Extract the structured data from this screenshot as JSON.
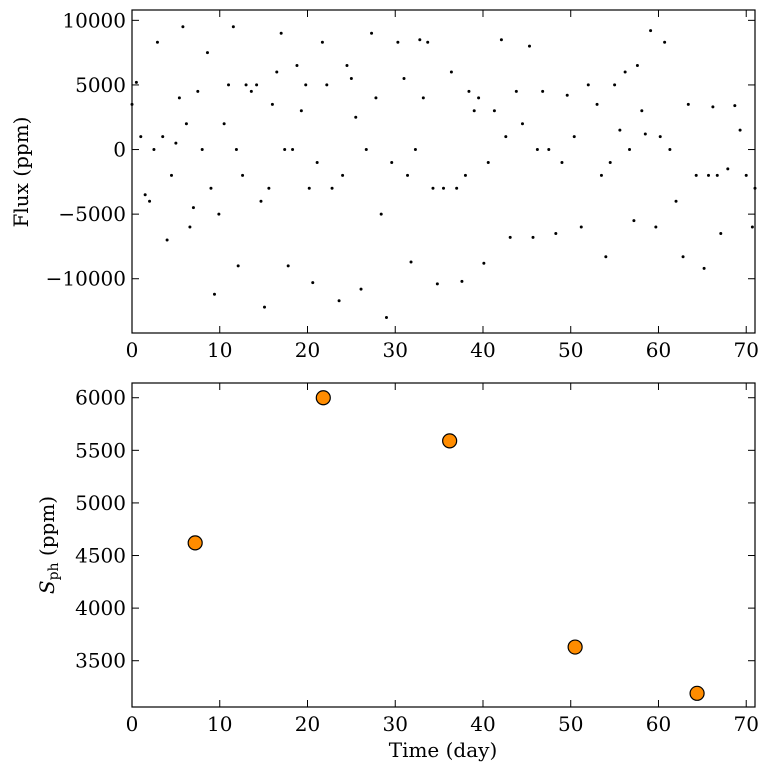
{
  "chart_data": [
    {
      "type": "scatter",
      "ylabel": "Flux (ppm)",
      "color": "#000000",
      "xlim": [
        0,
        71
      ],
      "ylim": [
        -14200,
        10800
      ],
      "xticks": [
        0,
        10,
        20,
        30,
        40,
        50,
        60,
        70
      ],
      "yticks": [
        {
          "value": -10000,
          "label": "−10000"
        },
        {
          "value": -5000,
          "label": "−5000"
        },
        0,
        5000,
        10000
      ],
      "x": [
        0,
        0.5,
        1,
        1.5,
        2,
        2.5,
        2.9,
        3.5,
        4,
        4.5,
        5,
        5.4,
        5.8,
        6.2,
        6.6,
        7,
        7.5,
        8,
        8.6,
        9,
        9.4,
        9.9,
        10.5,
        11,
        11.55,
        11.9,
        12.1,
        12.6,
        13,
        13.6,
        14.2,
        14.7,
        15.1,
        15.6,
        16,
        16.5,
        17,
        17.4,
        17.8,
        18.3,
        18.8,
        19.3,
        19.8,
        20.2,
        20.6,
        21.1,
        21.7,
        22.2,
        22.8,
        23.6,
        24,
        24.5,
        25,
        25.5,
        26.1,
        26.7,
        27.3,
        27.8,
        28.4,
        29,
        29.6,
        30.3,
        31,
        31.4,
        31.8,
        32.3,
        32.8,
        33.2,
        33.7,
        34.3,
        34.8,
        35.5,
        36.4,
        37,
        37.6,
        38,
        38.4,
        39,
        39.5,
        40.1,
        40.6,
        41.3,
        42.1,
        42.6,
        43.1,
        43.8,
        44.5,
        45.3,
        45.7,
        46.2,
        46.8,
        47.5,
        48.3,
        49,
        49.6,
        50.4,
        51.2,
        52,
        53,
        53.5,
        54,
        54.5,
        55,
        55.6,
        56.2,
        56.7,
        57.2,
        57.6,
        58.1,
        58.5,
        59.1,
        59.7,
        60.2,
        60.7,
        61.3,
        62,
        62.8,
        63.4,
        64.3,
        65.2,
        65.7,
        66.2,
        66.7,
        67.1,
        67.9,
        68.7,
        69.3,
        70,
        70.7,
        71
      ],
      "values": [
        3500,
        5200,
        1000,
        -3500,
        -4000,
        0,
        8300,
        1000,
        -7000,
        -2000,
        500,
        4000,
        9500,
        2000,
        -6000,
        -4500,
        4500,
        0,
        7500,
        -3000,
        -11200,
        -5000,
        2000,
        5000,
        9500,
        0,
        -9000,
        -2000,
        5000,
        4500,
        5000,
        -4000,
        -12200,
        -3000,
        3500,
        6000,
        9000,
        0,
        -9000,
        0,
        6500,
        3000,
        5000,
        -3000,
        -10300,
        -1000,
        8300,
        5000,
        -3000,
        -11700,
        -2000,
        6500,
        5500,
        2500,
        -10800,
        0,
        9000,
        4000,
        -5000,
        -13000,
        -1000,
        8300,
        5500,
        -2000,
        -8700,
        0,
        8500,
        4000,
        8300,
        -3000,
        -10400,
        -3000,
        6000,
        -3000,
        -10200,
        -2000,
        4500,
        3000,
        4000,
        -8800,
        -1000,
        3000,
        8500,
        1000,
        -6800,
        4500,
        2000,
        8000,
        -6800,
        0,
        4500,
        0,
        -6500,
        -1000,
        4200,
        1000,
        -6000,
        5000,
        3500,
        -2000,
        -8300,
        -1000,
        5000,
        1500,
        6000,
        0,
        -5500,
        6500,
        3000,
        1200,
        9200,
        -6000,
        1000,
        8300,
        0,
        -4000,
        -8300,
        3500,
        -2000,
        -9200,
        -2000,
        3300,
        -2000,
        -6500,
        -1500,
        3400,
        1500,
        -2000,
        -6000,
        -3000
      ]
    },
    {
      "type": "scatter",
      "xlabel": "Time (day)",
      "ylabel": "S",
      "ylabel_sub": "ph",
      "ylabel_unit": " (ppm)",
      "color": "#ff8c00",
      "xlim": [
        0,
        71
      ],
      "ylim": [
        3060,
        6140
      ],
      "xticks": [
        0,
        10,
        20,
        30,
        40,
        50,
        60,
        70
      ],
      "yticks": [
        3500,
        4000,
        4500,
        5000,
        5500,
        6000
      ],
      "x": [
        7.2,
        21.8,
        36.2,
        50.5,
        64.4
      ],
      "values": [
        4620,
        6000,
        5590,
        3630,
        3190
      ]
    }
  ]
}
